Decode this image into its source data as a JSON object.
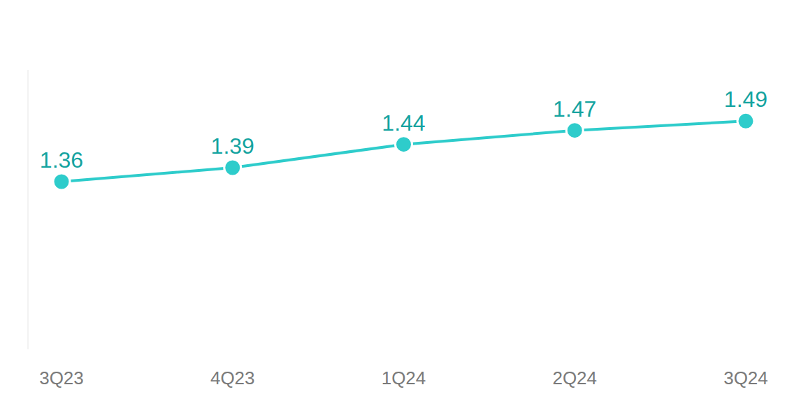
{
  "chart_data": {
    "type": "line",
    "categories": [
      "3Q23",
      "4Q23",
      "1Q24",
      "2Q24",
      "3Q24"
    ],
    "values": [
      1.36,
      1.39,
      1.44,
      1.47,
      1.49
    ],
    "color": "#2ecccb",
    "ylim": [
      1.0,
      1.6
    ],
    "yticks": [],
    "grid": false,
    "data_labels": true,
    "tick_labels": "x",
    "marker": "circle"
  }
}
